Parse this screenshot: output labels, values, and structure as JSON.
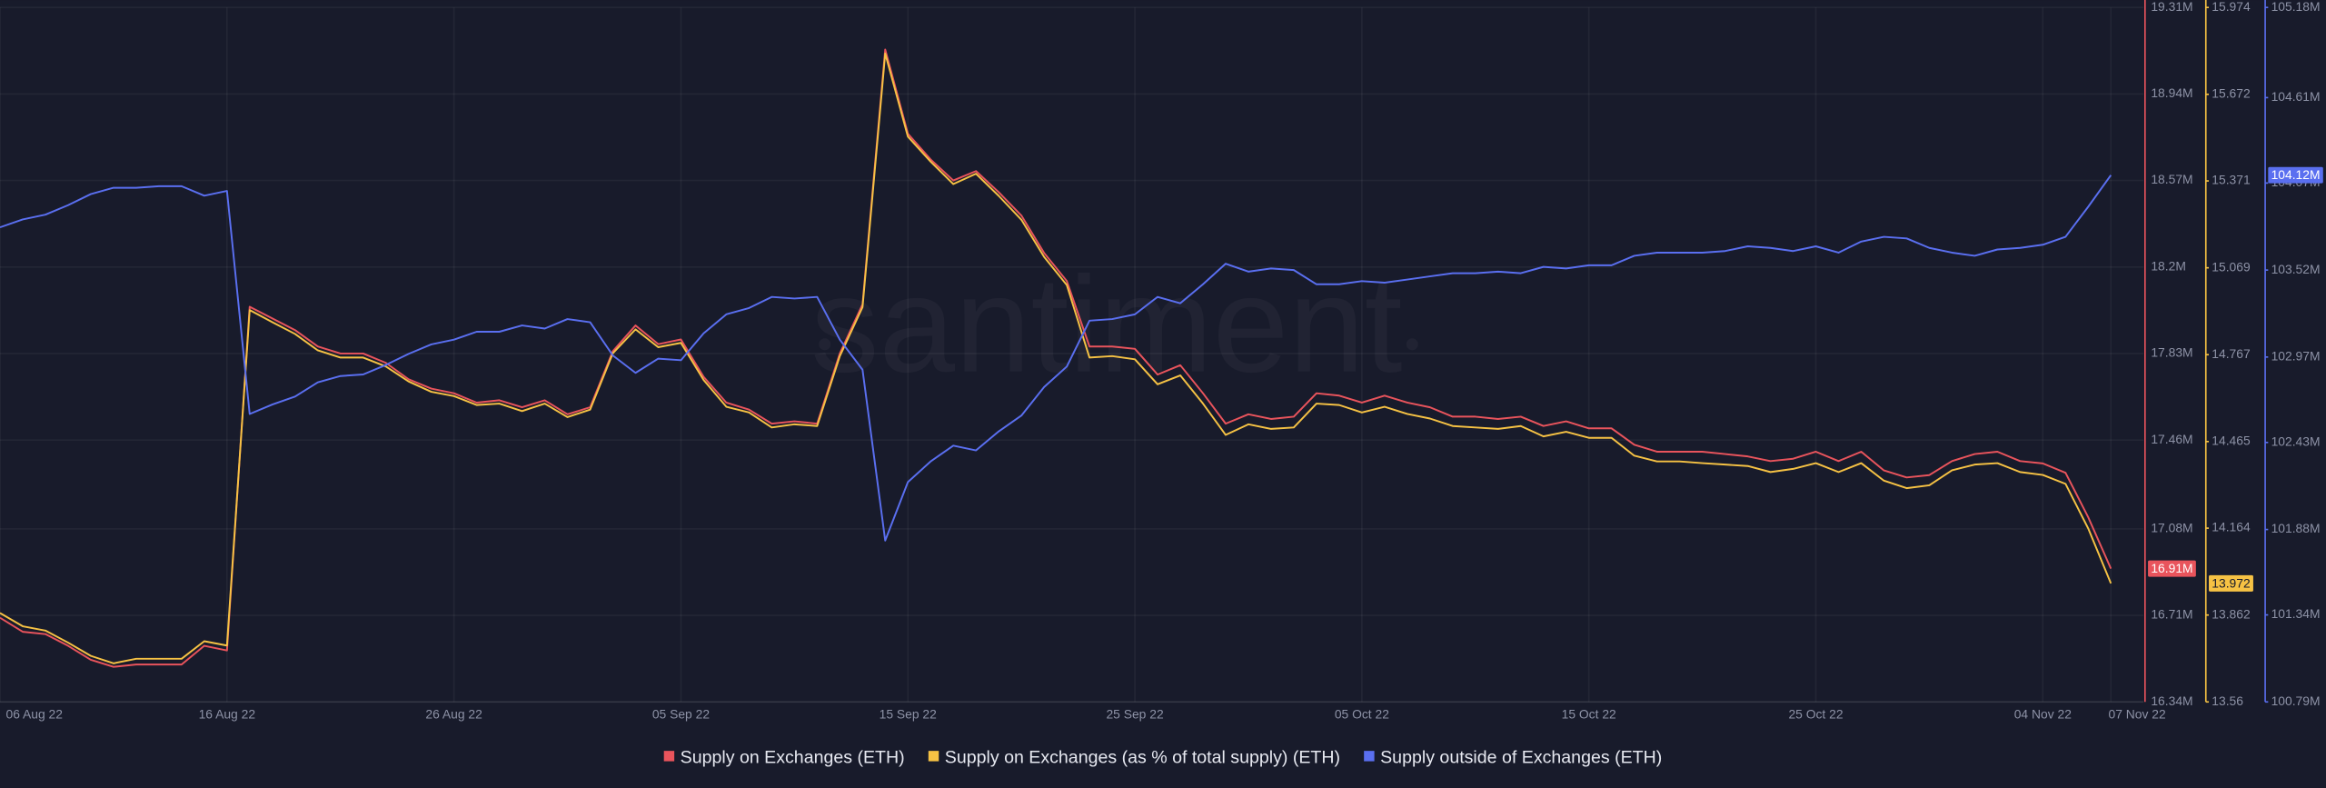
{
  "chart_data": {
    "type": "line",
    "watermark": "santiment",
    "x": [
      "2022-08-06",
      "2022-08-07",
      "2022-08-08",
      "2022-08-09",
      "2022-08-10",
      "2022-08-11",
      "2022-08-12",
      "2022-08-13",
      "2022-08-14",
      "2022-08-15",
      "2022-08-16",
      "2022-08-17",
      "2022-08-18",
      "2022-08-19",
      "2022-08-20",
      "2022-08-21",
      "2022-08-22",
      "2022-08-23",
      "2022-08-24",
      "2022-08-25",
      "2022-08-26",
      "2022-08-27",
      "2022-08-28",
      "2022-08-29",
      "2022-08-30",
      "2022-08-31",
      "2022-09-01",
      "2022-09-02",
      "2022-09-03",
      "2022-09-04",
      "2022-09-05",
      "2022-09-06",
      "2022-09-07",
      "2022-09-08",
      "2022-09-09",
      "2022-09-10",
      "2022-09-11",
      "2022-09-12",
      "2022-09-13",
      "2022-09-14",
      "2022-09-15",
      "2022-09-16",
      "2022-09-17",
      "2022-09-18",
      "2022-09-19",
      "2022-09-20",
      "2022-09-21",
      "2022-09-22",
      "2022-09-23",
      "2022-09-24",
      "2022-09-25",
      "2022-09-26",
      "2022-09-27",
      "2022-09-28",
      "2022-09-29",
      "2022-09-30",
      "2022-10-01",
      "2022-10-02",
      "2022-10-03",
      "2022-10-04",
      "2022-10-05",
      "2022-10-06",
      "2022-10-07",
      "2022-10-08",
      "2022-10-09",
      "2022-10-10",
      "2022-10-11",
      "2022-10-12",
      "2022-10-13",
      "2022-10-14",
      "2022-10-15",
      "2022-10-16",
      "2022-10-17",
      "2022-10-18",
      "2022-10-19",
      "2022-10-20",
      "2022-10-21",
      "2022-10-22",
      "2022-10-23",
      "2022-10-24",
      "2022-10-25",
      "2022-10-26",
      "2022-10-27",
      "2022-10-28",
      "2022-10-29",
      "2022-10-30",
      "2022-10-31",
      "2022-11-01",
      "2022-11-02",
      "2022-11-03",
      "2022-11-04",
      "2022-11-05",
      "2022-11-06",
      "2022-11-07"
    ],
    "xlim": [
      "2022-08-06",
      "2022-11-07"
    ],
    "xticks": [
      {
        "value": "2022-08-06",
        "label": "06 Aug 22"
      },
      {
        "value": "2022-08-16",
        "label": "16 Aug 22"
      },
      {
        "value": "2022-08-26",
        "label": "26 Aug 22"
      },
      {
        "value": "2022-09-05",
        "label": "05 Sep 22"
      },
      {
        "value": "2022-09-15",
        "label": "15 Sep 22"
      },
      {
        "value": "2022-09-25",
        "label": "25 Sep 22"
      },
      {
        "value": "2022-10-05",
        "label": "05 Oct 22"
      },
      {
        "value": "2022-10-15",
        "label": "15 Oct 22"
      },
      {
        "value": "2022-10-25",
        "label": "25 Oct 22"
      },
      {
        "value": "2022-11-04",
        "label": "04 Nov 22"
      },
      {
        "value": "2022-11-07",
        "label": "07 Nov 22"
      }
    ],
    "ylim": [
      16340000,
      19310000
    ],
    "yticks": [
      {
        "value": 19310000,
        "label": "19.31M"
      },
      {
        "value": 18940000,
        "label": "18.94M"
      },
      {
        "value": 18570000,
        "label": "18.57M"
      },
      {
        "value": 18200000,
        "label": "18.2M"
      },
      {
        "value": 17830000,
        "label": "17.83M"
      },
      {
        "value": 17460000,
        "label": "17.46M"
      },
      {
        "value": 17080000,
        "label": "17.08M"
      },
      {
        "value": 16710000,
        "label": "16.71M"
      },
      {
        "value": 16340000,
        "label": "16.34M"
      }
    ],
    "y2lim": [
      13.56,
      15.974
    ],
    "y2ticks": [
      15.974,
      15.672,
      15.371,
      15.069,
      14.767,
      14.465,
      14.164,
      13.862,
      13.56
    ],
    "y3lim": [
      100790000,
      105180000
    ],
    "y3ticks": [
      {
        "value": 105180000,
        "label": "105.18M"
      },
      {
        "value": 104610000,
        "label": "104.61M"
      },
      {
        "value": 104070000,
        "label": "104.07M"
      },
      {
        "value": 103520000,
        "label": "103.52M"
      },
      {
        "value": 102970000,
        "label": "102.97M"
      },
      {
        "value": 102430000,
        "label": "102.43M"
      },
      {
        "value": 101880000,
        "label": "101.88M"
      },
      {
        "value": 101340000,
        "label": "101.34M"
      },
      {
        "value": 100790000,
        "label": "100.79M"
      }
    ],
    "grid": true,
    "legend": "bottom",
    "series": [
      {
        "name": "Supply on Exchanges (ETH)",
        "color": "#e9545c",
        "axis": "y",
        "values": [
          16700000,
          16640000,
          16630000,
          16580000,
          16520000,
          16490000,
          16500000,
          16500000,
          16500000,
          16580000,
          16560000,
          18030000,
          17980000,
          17930000,
          17860000,
          17830000,
          17830000,
          17790000,
          17720000,
          17680000,
          17660000,
          17620000,
          17630000,
          17600000,
          17630000,
          17570000,
          17600000,
          17840000,
          17950000,
          17870000,
          17890000,
          17730000,
          17620000,
          17590000,
          17530000,
          17540000,
          17530000,
          17830000,
          18040000,
          19130000,
          18770000,
          18660000,
          18570000,
          18610000,
          18520000,
          18420000,
          18260000,
          18140000,
          17860000,
          17860000,
          17850000,
          17740000,
          17780000,
          17660000,
          17530000,
          17570000,
          17550000,
          17560000,
          17660000,
          17650000,
          17620000,
          17650000,
          17620000,
          17600000,
          17560000,
          17560000,
          17550000,
          17560000,
          17520000,
          17540000,
          17510000,
          17510000,
          17440000,
          17410000,
          17410000,
          17410000,
          17400000,
          17390000,
          17370000,
          17380000,
          17410000,
          17370000,
          17410000,
          17330000,
          17300000,
          17310000,
          17370000,
          17400000,
          17410000,
          17370000,
          17360000,
          17320000,
          17130000,
          16910000
        ],
        "value_labels": [
          null,
          null,
          null,
          null,
          null,
          null,
          null,
          null,
          null,
          null,
          null,
          null,
          null,
          null,
          null,
          null,
          null,
          null,
          null,
          null,
          null,
          null,
          null,
          null,
          null,
          null,
          null,
          null,
          null,
          null,
          null,
          null,
          null,
          null,
          null,
          null,
          null,
          null,
          null,
          null,
          null,
          null,
          null,
          null,
          null,
          null,
          null,
          null,
          null,
          null,
          null,
          null,
          null,
          null,
          null,
          null,
          null,
          null,
          null,
          null,
          null,
          null,
          null,
          null,
          null,
          null,
          null,
          null,
          null,
          null,
          null,
          null,
          null,
          null,
          null,
          null,
          null,
          null,
          null,
          null,
          null,
          null,
          null,
          null,
          null,
          null,
          null,
          null,
          null,
          null,
          null,
          null,
          null,
          "16.91M"
        ]
      },
      {
        "name": "Supply on Exchanges (as % of total supply) (ETH)",
        "color": "#f6c244",
        "axis": "y2",
        "values": [
          13.869,
          13.823,
          13.808,
          13.766,
          13.72,
          13.694,
          13.71,
          13.71,
          13.71,
          13.771,
          13.756,
          14.922,
          14.88,
          14.839,
          14.782,
          14.757,
          14.757,
          14.726,
          14.674,
          14.638,
          14.623,
          14.592,
          14.597,
          14.571,
          14.597,
          14.55,
          14.576,
          14.772,
          14.855,
          14.793,
          14.808,
          14.679,
          14.586,
          14.566,
          14.514,
          14.525,
          14.519,
          14.762,
          14.932,
          15.814,
          15.525,
          15.438,
          15.36,
          15.396,
          15.319,
          15.236,
          15.107,
          15.009,
          14.757,
          14.762,
          14.751,
          14.664,
          14.695,
          14.597,
          14.488,
          14.525,
          14.509,
          14.514,
          14.597,
          14.592,
          14.566,
          14.586,
          14.561,
          14.545,
          14.519,
          14.514,
          14.509,
          14.519,
          14.483,
          14.499,
          14.478,
          14.478,
          14.416,
          14.396,
          14.396,
          14.39,
          14.385,
          14.38,
          14.359,
          14.37,
          14.39,
          14.359,
          14.39,
          14.329,
          14.303,
          14.313,
          14.365,
          14.385,
          14.39,
          14.359,
          14.349,
          14.318,
          14.163,
          13.972
        ],
        "value_labels": [
          null,
          null,
          null,
          null,
          null,
          null,
          null,
          null,
          null,
          null,
          null,
          null,
          null,
          null,
          null,
          null,
          null,
          null,
          null,
          null,
          null,
          null,
          null,
          null,
          null,
          null,
          null,
          null,
          null,
          null,
          null,
          null,
          null,
          null,
          null,
          null,
          null,
          null,
          null,
          null,
          null,
          null,
          null,
          null,
          null,
          null,
          null,
          null,
          null,
          null,
          null,
          null,
          null,
          null,
          null,
          null,
          null,
          null,
          null,
          null,
          null,
          null,
          null,
          null,
          null,
          null,
          null,
          null,
          null,
          null,
          null,
          null,
          null,
          null,
          null,
          null,
          null,
          null,
          null,
          null,
          null,
          null,
          null,
          null,
          null,
          null,
          null,
          null,
          null,
          null,
          null,
          null,
          null,
          "13.972"
        ]
      },
      {
        "name": "Supply outside of Exchanges (ETH)",
        "color": "#5a6ff0",
        "axis": "y3",
        "values": [
          103790000,
          103840000,
          103870000,
          103930000,
          104000000,
          104040000,
          104040000,
          104050000,
          104050000,
          103990000,
          104020000,
          102610000,
          102670000,
          102720000,
          102810000,
          102850000,
          102860000,
          102920000,
          102990000,
          103050000,
          103080000,
          103130000,
          103130000,
          103170000,
          103150000,
          103210000,
          103190000,
          102980000,
          102870000,
          102960000,
          102950000,
          103120000,
          103240000,
          103280000,
          103350000,
          103340000,
          103350000,
          103080000,
          102890000,
          101810000,
          102180000,
          102310000,
          102410000,
          102380000,
          102500000,
          102600000,
          102780000,
          102910000,
          103200000,
          103210000,
          103240000,
          103350000,
          103310000,
          103430000,
          103560000,
          103510000,
          103530000,
          103520000,
          103430000,
          103430000,
          103450000,
          103440000,
          103460000,
          103480000,
          103500000,
          103500000,
          103510000,
          103500000,
          103540000,
          103530000,
          103550000,
          103550000,
          103610000,
          103630000,
          103630000,
          103630000,
          103640000,
          103670000,
          103660000,
          103640000,
          103670000,
          103630000,
          103700000,
          103730000,
          103720000,
          103660000,
          103630000,
          103610000,
          103650000,
          103660000,
          103680000,
          103730000,
          103920000,
          104120000
        ],
        "value_labels": [
          null,
          null,
          null,
          null,
          null,
          null,
          null,
          null,
          null,
          null,
          null,
          null,
          null,
          null,
          null,
          null,
          null,
          null,
          null,
          null,
          null,
          null,
          null,
          null,
          null,
          null,
          null,
          null,
          null,
          null,
          null,
          null,
          null,
          null,
          null,
          null,
          null,
          null,
          null,
          null,
          null,
          null,
          null,
          null,
          null,
          null,
          null,
          null,
          null,
          null,
          null,
          null,
          null,
          null,
          null,
          null,
          null,
          null,
          null,
          null,
          null,
          null,
          null,
          null,
          null,
          null,
          null,
          null,
          null,
          null,
          null,
          null,
          null,
          null,
          null,
          null,
          null,
          null,
          null,
          null,
          null,
          null,
          null,
          null,
          null,
          null,
          null,
          null,
          null,
          null,
          null,
          null,
          null,
          "104.12M"
        ]
      }
    ]
  }
}
